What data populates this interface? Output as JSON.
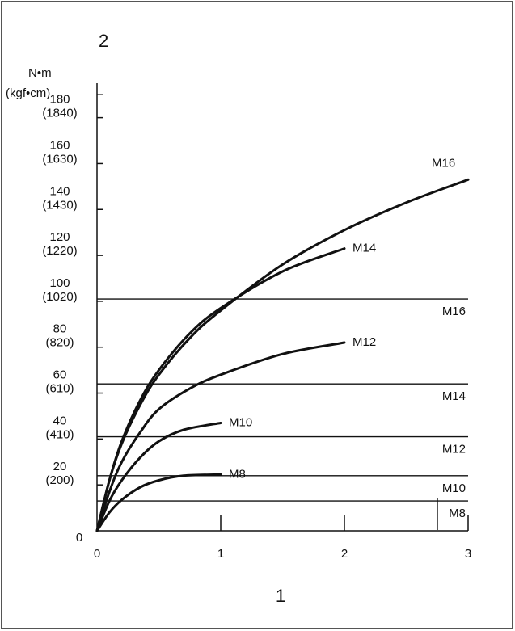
{
  "chart_data": {
    "type": "line",
    "corner_label": "2",
    "xlabel": "1",
    "unit_label_top": "N•m",
    "unit_label_bottom": "(kgf•cm)",
    "xlim": [
      0,
      3
    ],
    "ylim": [
      0,
      195
    ],
    "x_ticks": [
      {
        "value": 0,
        "label": "0"
      },
      {
        "value": 1,
        "label": "1"
      },
      {
        "value": 2,
        "label": "2"
      },
      {
        "value": 3,
        "label": "3"
      }
    ],
    "y_origin_label": "0",
    "y_ticks": [
      {
        "value": 20,
        "label": "20",
        "sublabel": "(200)"
      },
      {
        "value": 40,
        "label": "40",
        "sublabel": "(410)"
      },
      {
        "value": 60,
        "label": "60",
        "sublabel": "(610)"
      },
      {
        "value": 80,
        "label": "80",
        "sublabel": "(820)"
      },
      {
        "value": 100,
        "label": "100",
        "sublabel": "(1020)"
      },
      {
        "value": 120,
        "label": "120",
        "sublabel": "(1220)"
      },
      {
        "value": 140,
        "label": "140",
        "sublabel": "(1430)"
      },
      {
        "value": 160,
        "label": "160",
        "sublabel": "(1630)"
      },
      {
        "value": 180,
        "label": "180",
        "sublabel": "(1840)"
      }
    ],
    "series": [
      {
        "name": "M8",
        "x": [
          0,
          0.1,
          0.2,
          0.35,
          0.5,
          0.7,
          1.0
        ],
        "y": [
          0,
          8,
          13.5,
          19,
          22,
          24,
          24.5
        ]
      },
      {
        "name": "M10",
        "x": [
          0,
          0.1,
          0.2,
          0.35,
          0.5,
          0.7,
          1.0
        ],
        "y": [
          0,
          13,
          22,
          32,
          39,
          44,
          47
        ]
      },
      {
        "name": "M12",
        "x": [
          0,
          0.1,
          0.2,
          0.35,
          0.5,
          0.75,
          1.0,
          1.5,
          2.0
        ],
        "y": [
          0,
          17,
          30,
          43,
          53,
          62,
          68,
          77,
          82
        ]
      },
      {
        "name": "M14",
        "x": [
          0,
          0.1,
          0.2,
          0.35,
          0.5,
          0.75,
          1.0,
          1.5,
          2.0
        ],
        "y": [
          0,
          22,
          39,
          57,
          70,
          86,
          97,
          113,
          123
        ]
      },
      {
        "name": "M16",
        "x": [
          0,
          0.1,
          0.2,
          0.35,
          0.5,
          0.75,
          1.0,
          1.5,
          2.0,
          2.5,
          3.0
        ],
        "y": [
          0,
          22,
          38,
          55,
          68,
          84,
          96,
          116,
          131,
          143,
          153
        ]
      }
    ],
    "reference_lines": [
      {
        "name": "M8",
        "y": 13
      },
      {
        "name": "M10",
        "y": 24
      },
      {
        "name": "M12",
        "y": 41
      },
      {
        "name": "M14",
        "y": 64
      },
      {
        "name": "M16",
        "y": 101
      }
    ]
  }
}
